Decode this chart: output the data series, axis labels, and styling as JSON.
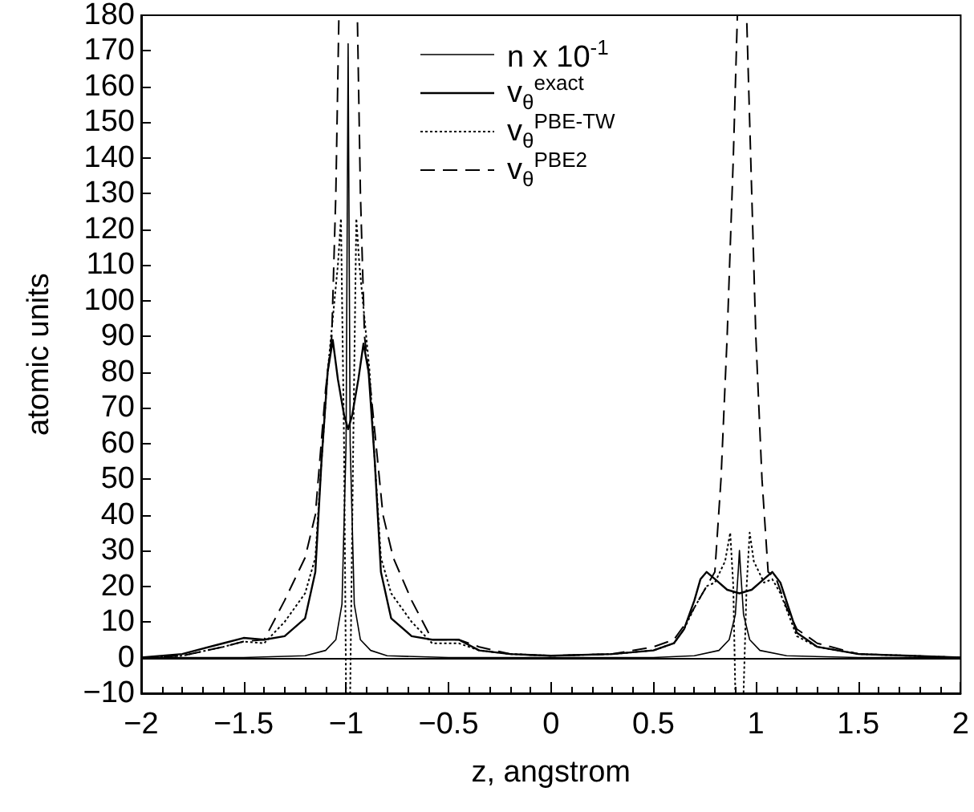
{
  "chart_data": {
    "type": "line",
    "xlabel": "z, angstrom",
    "ylabel": "atomic units",
    "xlim": [
      -2,
      2
    ],
    "xticks": [
      -2,
      -1.5,
      -1,
      -0.5,
      0,
      0.5,
      1,
      1.5,
      2
    ],
    "ylim": [
      -10,
      180
    ],
    "yticks": [
      -10,
      0,
      10,
      20,
      30,
      40,
      50,
      60,
      70,
      80,
      90,
      100,
      110,
      120,
      130,
      140,
      150,
      160,
      170,
      180
    ],
    "grid": false,
    "legend": "top right",
    "marker": "none",
    "ref_lines": [
      {
        "axis": "y",
        "value": 0,
        "color": "#000000",
        "line_style": "solid"
      }
    ],
    "series": [
      {
        "name": "n x 10$^{-1}$",
        "color": "#000000",
        "line_style": "solid",
        "x": [
          -2,
          -1.5,
          -1.2,
          -1.1,
          -1.05,
          -1.02,
          -1.0,
          -0.99,
          -0.98,
          -0.96,
          -0.93,
          -0.88,
          -0.8,
          -0.5,
          0,
          0.5,
          0.7,
          0.82,
          0.87,
          0.9,
          0.915,
          0.92,
          0.925,
          0.94,
          0.97,
          1.02,
          1.15,
          1.5,
          2
        ],
        "values": [
          0,
          0,
          0.5,
          2,
          5,
          15,
          60,
          172,
          60,
          15,
          5,
          2,
          0.5,
          0,
          0,
          0,
          0.5,
          2,
          5,
          12,
          25,
          30,
          25,
          12,
          5,
          2,
          0.5,
          0,
          0
        ]
      },
      {
        "name": "v$_{θ}$$^{exact}$",
        "color": "#000000",
        "line_style": "solid",
        "x": [
          -2,
          -1.8,
          -1.6,
          -1.5,
          -1.4,
          -1.3,
          -1.2,
          -1.15,
          -1.12,
          -1.09,
          -1.065,
          -1.04,
          -1.01,
          -0.99,
          -0.97,
          -0.94,
          -0.915,
          -0.89,
          -0.86,
          -0.83,
          -0.78,
          -0.68,
          -0.58,
          -0.45,
          -0.35,
          -0.2,
          0,
          0.3,
          0.5,
          0.6,
          0.65,
          0.7,
          0.73,
          0.76,
          0.8,
          0.86,
          0.92,
          0.98,
          1.04,
          1.08,
          1.12,
          1.16,
          1.2,
          1.3,
          1.5,
          1.75,
          2
        ],
        "values": [
          0,
          1,
          4,
          5.5,
          5,
          6,
          11,
          24,
          55,
          80,
          89,
          78,
          68,
          64,
          68,
          78,
          88,
          80,
          55,
          24,
          11,
          6,
          5,
          5,
          2,
          1,
          0.5,
          1,
          2,
          4,
          8,
          16,
          22,
          24,
          22,
          19,
          18,
          19,
          22,
          24,
          21,
          14,
          7,
          3,
          1,
          0.5,
          0
        ]
      },
      {
        "name": "v$_{θ}$$^{PBE-TW}$",
        "color": "#000000",
        "line_style": "dotted",
        "x": [
          -2,
          -1.8,
          -1.6,
          -1.5,
          -1.4,
          -1.3,
          -1.2,
          -1.15,
          -1.12,
          -1.09,
          -1.065,
          -1.04,
          -1.025,
          -1.01,
          -1.0,
          -0.98,
          -0.965,
          -0.95,
          -0.935,
          -0.91,
          -0.885,
          -0.86,
          -0.83,
          -0.78,
          -0.68,
          -0.58,
          -0.45,
          -0.35,
          -0.2,
          0,
          0.3,
          0.5,
          0.6,
          0.65,
          0.7,
          0.76,
          0.8,
          0.85,
          0.875,
          0.89,
          0.9,
          0.94,
          0.955,
          0.97,
          0.99,
          1.04,
          1.08,
          1.12,
          1.16,
          1.2,
          1.3,
          1.5,
          1.75,
          2
        ],
        "values": [
          0,
          0.5,
          3,
          4.5,
          4,
          10,
          18,
          28,
          55,
          80,
          95,
          110,
          123,
          60,
          -10,
          -10,
          60,
          123,
          110,
          95,
          80,
          55,
          28,
          18,
          10,
          4,
          4,
          2,
          1,
          0.5,
          1,
          2,
          4,
          8,
          14,
          20,
          21,
          27,
          35,
          20,
          -10,
          -10,
          20,
          35,
          27,
          21,
          22,
          18,
          12,
          6,
          3,
          1,
          0.5,
          0
        ]
      },
      {
        "name": "v$_{θ}$$^{PBE2}$",
        "color": "#000000",
        "line_style": "dashed",
        "x": [
          -2,
          -1.8,
          -1.6,
          -1.5,
          -1.4,
          -1.3,
          -1.2,
          -1.15,
          -1.1,
          -1.07,
          -1.05,
          -1.035,
          -0.945,
          -0.93,
          -0.91,
          -0.88,
          -0.82,
          -0.77,
          -0.68,
          -0.58,
          -0.45,
          -0.35,
          -0.2,
          0,
          0.3,
          0.5,
          0.6,
          0.65,
          0.7,
          0.76,
          0.8,
          0.83,
          0.86,
          0.89,
          0.91,
          0.955,
          0.975,
          1.0,
          1.03,
          1.06,
          1.1,
          1.15,
          1.2,
          1.3,
          1.5,
          1.75,
          2
        ],
        "values": [
          0,
          0.5,
          3,
          4.5,
          5,
          16,
          28,
          40,
          75,
          90,
          130,
          180,
          180,
          130,
          90,
          75,
          40,
          28,
          16,
          5,
          5,
          3,
          1,
          0.5,
          1,
          3,
          5,
          9,
          14,
          20,
          24,
          50,
          90,
          140,
          180,
          180,
          140,
          90,
          50,
          24,
          22,
          14,
          8,
          4,
          1,
          0.5,
          0
        ]
      }
    ]
  }
}
